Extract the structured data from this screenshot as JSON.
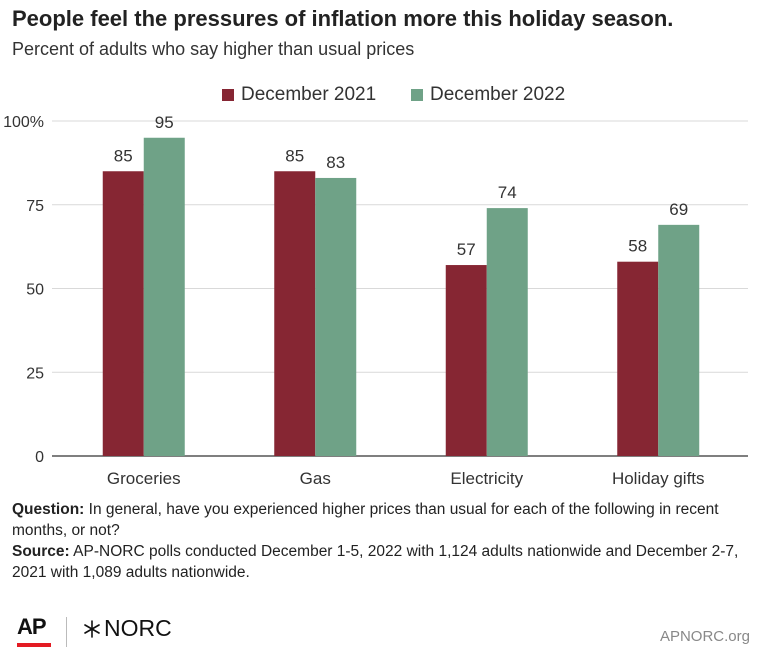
{
  "title": "People feel the pressures of inflation more this holiday season.",
  "subtitle": "Percent of adults who say higher than usual prices",
  "chart_data": {
    "type": "bar",
    "categories": [
      "Groceries",
      "Gas",
      "Electricity",
      "Holiday gifts"
    ],
    "series": [
      {
        "name": "December 2021",
        "values": [
          85,
          85,
          57,
          58
        ],
        "color": "#862633"
      },
      {
        "name": "December 2022",
        "values": [
          95,
          83,
          74,
          69
        ],
        "color": "#6fa287"
      }
    ],
    "ylim": [
      0,
      100
    ],
    "yticks": [
      0,
      25,
      50,
      75,
      100
    ],
    "ytick_labels": [
      "0",
      "25",
      "50",
      "75",
      "100%"
    ],
    "grid": true,
    "legend": "top-center",
    "data_labels": true
  },
  "notes": {
    "question_label": "Question:",
    "question_text": " In general, have you experienced higher prices than usual for each of the following in recent months, or not?",
    "source_label": "Source:",
    "source_text": "  AP-NORC polls conducted December 1-5, 2022 with 1,124 adults nationwide and December 2-7, 2021 with 1,089 adults nationwide."
  },
  "footer": {
    "logo_ap": "AP",
    "logo_norc": "NORC",
    "site": "APNORC.org"
  },
  "colors": {
    "accent_ap": "#e31b23",
    "grid": "#d9d9d9",
    "axis": "#333333"
  }
}
